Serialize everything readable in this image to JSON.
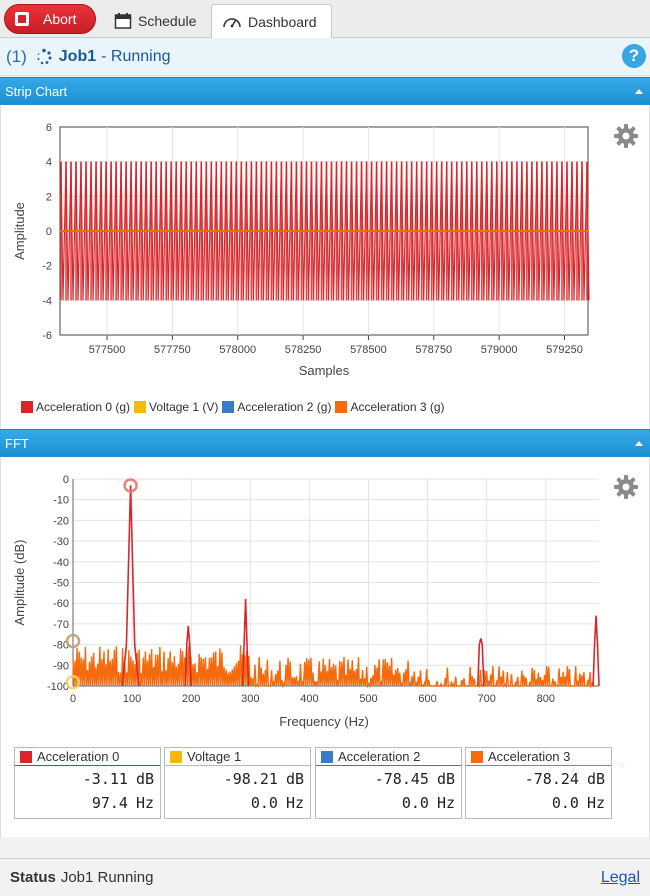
{
  "toolbar": {
    "abort_label": "Abort",
    "tabs": [
      {
        "label": "Schedule",
        "icon": "calendar-icon"
      },
      {
        "label": "Dashboard",
        "icon": "gauge-icon",
        "active": true
      }
    ]
  },
  "job": {
    "queue": "(1)",
    "name": "Job1",
    "separator": " - ",
    "status": "Running",
    "help": "?"
  },
  "strip_chart": {
    "header": "Strip Chart",
    "ylabel": "Amplitude",
    "xlabel": "Samples",
    "y_ticks": [
      "6",
      "4",
      "2",
      "0",
      "-2",
      "-4",
      "-6"
    ],
    "x_ticks": [
      "577500",
      "577750",
      "578000",
      "578250",
      "578500",
      "578750",
      "579000",
      "579250"
    ],
    "legend": [
      {
        "label": "Acceleration 0 (g)",
        "color": "#d9262b"
      },
      {
        "label": "Voltage 1 (V)",
        "color": "#f7b80d"
      },
      {
        "label": "Acceleration 2 (g)",
        "color": "#3a7bc8"
      },
      {
        "label": "Acceleration 3 (g)",
        "color": "#f46a0c"
      }
    ]
  },
  "fft": {
    "header": "FFT",
    "ylabel": "Amplitude (dB)",
    "xlabel": "Frequency (Hz)",
    "y_ticks": [
      "0",
      "-10",
      "-20",
      "-30",
      "-40",
      "-50",
      "-60",
      "-70",
      "-80",
      "-90",
      "-100"
    ],
    "x_ticks": [
      "0",
      "100",
      "200",
      "300",
      "400",
      "500",
      "600",
      "700",
      "800"
    ],
    "readouts": [
      {
        "name": "Acceleration 0",
        "color": "#d9262b",
        "db": "-3.11",
        "db_unit": "dB",
        "hz": "97.4",
        "hz_unit": "Hz"
      },
      {
        "name": "Voltage 1",
        "color": "#f7b80d",
        "db": "-98.21",
        "db_unit": "dB",
        "hz": "0.0",
        "hz_unit": "Hz"
      },
      {
        "name": "Acceleration 2",
        "color": "#3a7bc8",
        "db": "-78.45",
        "db_unit": "dB",
        "hz": "0.0",
        "hz_unit": "Hz"
      },
      {
        "name": "Acceleration 3",
        "color": "#f46a0c",
        "db": "-78.24",
        "db_unit": "dB",
        "hz": "0.0",
        "hz_unit": "Hz"
      }
    ]
  },
  "chart_data": [
    {
      "type": "line",
      "title": "",
      "xlabel": "Samples",
      "ylabel": "Amplitude",
      "xlim": [
        577320,
        579340
      ],
      "ylim": [
        -6,
        6
      ],
      "series": [
        {
          "name": "Acceleration 0 (g)",
          "color": "#d9262b",
          "pattern": "oscillating",
          "max": 4,
          "min": -4
        },
        {
          "name": "Acceleration 3 (g)",
          "color": "#f46a0c",
          "pattern": "flat",
          "value": 0
        }
      ]
    },
    {
      "type": "line",
      "title": "",
      "xlabel": "Frequency (Hz)",
      "ylabel": "Amplitude (dB)",
      "xlim": [
        0,
        890
      ],
      "ylim": [
        -100,
        0
      ],
      "peaks": [
        {
          "x": 97.4,
          "y": -3.11
        },
        {
          "x": 195,
          "y": -71
        },
        {
          "x": 292,
          "y": -58
        },
        {
          "x": 690,
          "y": -77
        },
        {
          "x": 885,
          "y": -66
        }
      ],
      "markers": [
        {
          "series": "Acceleration 0",
          "x": 97.4,
          "y": -3.11
        },
        {
          "series": "Voltage 1",
          "x": 0.0,
          "y": -98.21
        },
        {
          "series": "Acceleration 2",
          "x": 0.0,
          "y": -78.45
        },
        {
          "series": "Acceleration 3",
          "x": 0.0,
          "y": -78.24
        }
      ]
    }
  ],
  "statusbar": {
    "label": "Status",
    "text": "Job1 Running",
    "legal": "Legal"
  }
}
